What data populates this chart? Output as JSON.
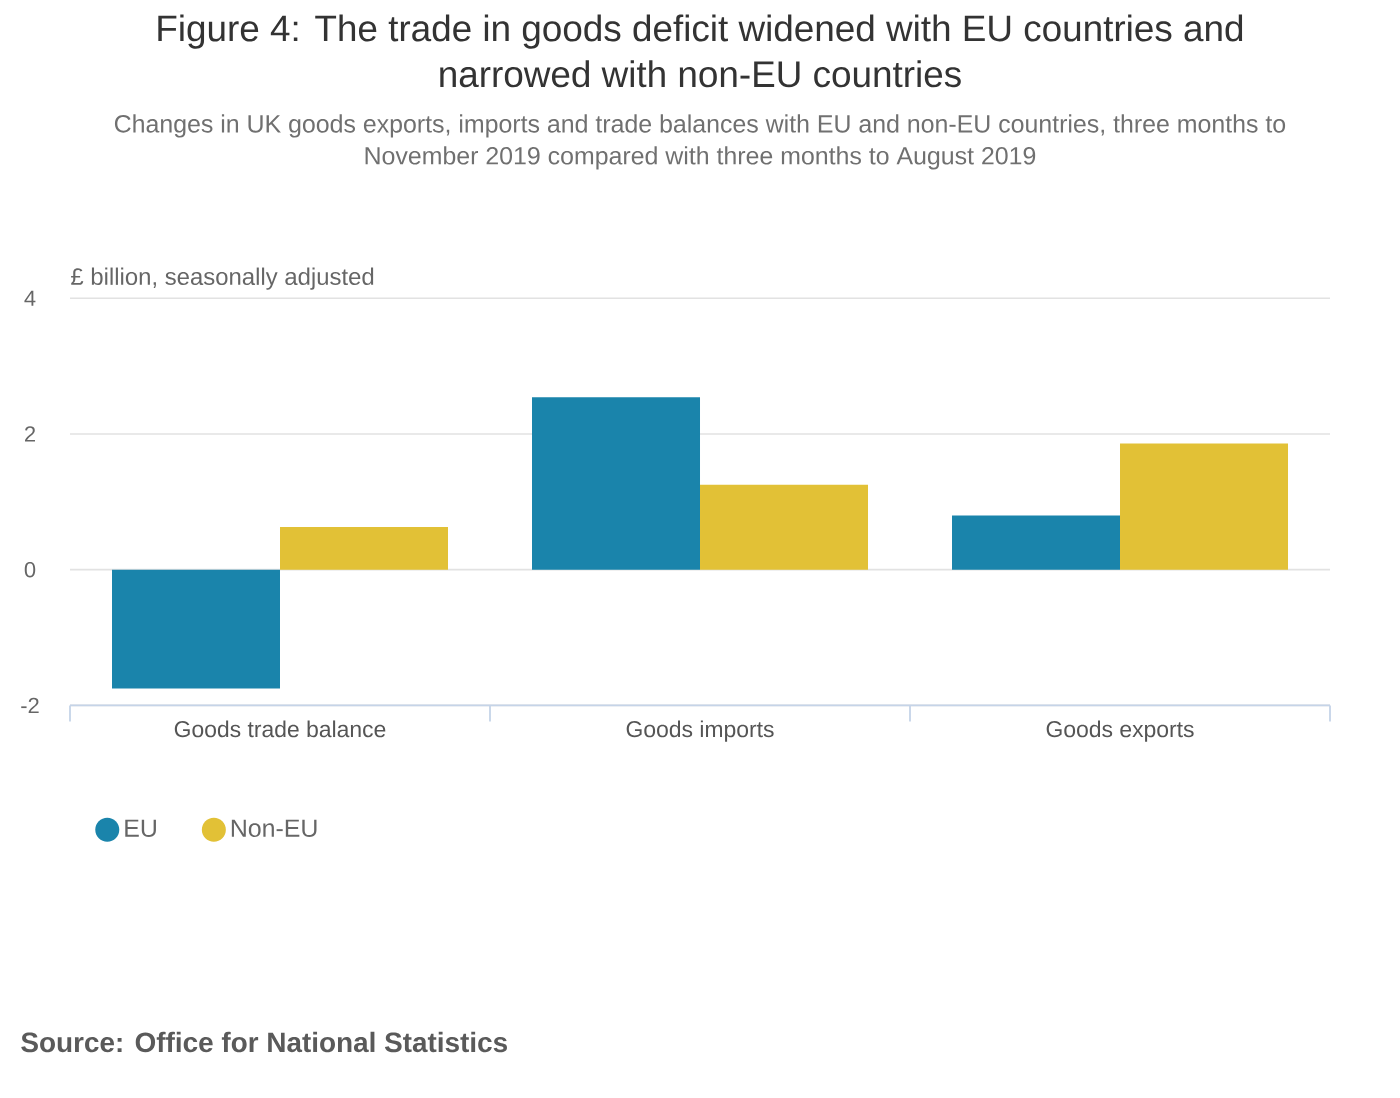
{
  "chart_data": {
    "type": "bar",
    "title": "Figure 4: The trade in goods deficit widened with EU countries and narrowed with non-EU countries",
    "subtitle": "Changes in UK goods exports, imports and trade balances with EU and non-EU countries, three months to November 2019 compared with three months to August 2019",
    "ylabel": "£ billion, seasonally adjusted",
    "categories": [
      "Goods trade balance",
      "Goods imports",
      "Goods exports"
    ],
    "series": [
      {
        "name": "EU",
        "color": "#1a84ab",
        "values": [
          -1.75,
          2.54,
          0.8
        ]
      },
      {
        "name": "Non-EU",
        "color": "#e2c136",
        "values": [
          0.63,
          1.25,
          1.86
        ]
      }
    ],
    "ylim": [
      -2,
      4
    ],
    "yticks": [
      -2,
      0,
      2,
      4
    ],
    "grid": "y",
    "legend": "bottom left",
    "annotations": [
      "Source: Office for National Statistics"
    ]
  }
}
